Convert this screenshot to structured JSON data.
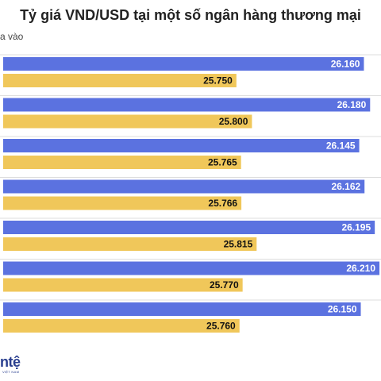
{
  "legend": {
    "text": "a vào"
  },
  "logo": {
    "word": "ntệ",
    "sub": "VIỆT NAM"
  },
  "colors": {
    "sell": "#5b72e0",
    "buy": "#f0c75a",
    "grid": "#dddddd"
  },
  "chart_data": {
    "type": "bar",
    "orientation": "horizontal",
    "title": "Tỷ giá VND/USD tại một số ngân hàng thương mại",
    "xlim": [
      25000,
      26215
    ],
    "grid": true,
    "series": [
      {
        "values": [
          26160,
          26180,
          26145,
          26162,
          26195,
          26210,
          26150
        ],
        "labels": [
          "26.160",
          "26.180",
          "26.145",
          "26.162",
          "26.195",
          "26.210",
          "26.150"
        ]
      },
      {
        "values": [
          25750,
          25800,
          25765,
          25766,
          25815,
          25770,
          25760
        ],
        "labels": [
          "25.750",
          "25.800",
          "25.765",
          "25.766",
          "25.815",
          "25.770",
          "25.760"
        ]
      }
    ]
  }
}
